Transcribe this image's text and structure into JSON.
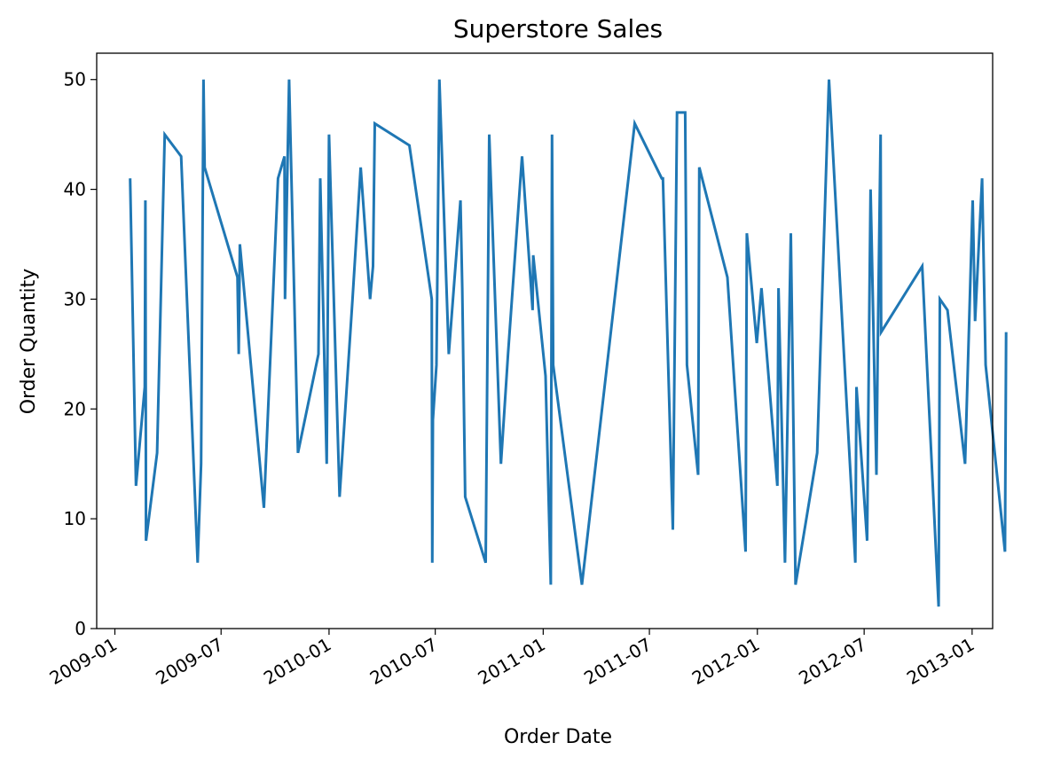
{
  "chart_data": {
    "type": "line",
    "title": "Superstore Sales",
    "xlabel": "Order Date",
    "ylabel": "Order Quantity",
    "x_axis": "date",
    "xlim": [
      "2008-12-01",
      "2013-02-05"
    ],
    "ylim": [
      0,
      52.4
    ],
    "x_ticks": [
      "2009-01",
      "2009-07",
      "2010-01",
      "2010-07",
      "2011-01",
      "2011-07",
      "2012-01",
      "2012-07",
      "2013-01"
    ],
    "y_ticks": [
      0,
      10,
      20,
      30,
      40,
      50
    ],
    "grid": false,
    "legend": "none",
    "series": [
      {
        "color": "#1f77b4",
        "points": [
          [
            "2009-01-27",
            41
          ],
          [
            "2009-02-06",
            13
          ],
          [
            "2009-02-21",
            22
          ],
          [
            "2009-02-22",
            39
          ],
          [
            "2009-02-23",
            8
          ],
          [
            "2009-03-14",
            16
          ],
          [
            "2009-03-27",
            45
          ],
          [
            "2009-04-24",
            43
          ],
          [
            "2009-05-22",
            6
          ],
          [
            "2009-05-28",
            15
          ],
          [
            "2009-06-01",
            50
          ],
          [
            "2009-06-03",
            42
          ],
          [
            "2009-07-29",
            32
          ],
          [
            "2009-07-31",
            25
          ],
          [
            "2009-08-02",
            35
          ],
          [
            "2009-09-12",
            11
          ],
          [
            "2009-10-06",
            41
          ],
          [
            "2009-10-17",
            43
          ],
          [
            "2009-10-18",
            30
          ],
          [
            "2009-10-25",
            50
          ],
          [
            "2009-11-09",
            16
          ],
          [
            "2009-12-14",
            25
          ],
          [
            "2009-12-17",
            41
          ],
          [
            "2009-12-28",
            15
          ],
          [
            "2010-01-01",
            45
          ],
          [
            "2010-01-19",
            12
          ],
          [
            "2010-02-10",
            30
          ],
          [
            "2010-02-24",
            42
          ],
          [
            "2010-03-12",
            30
          ],
          [
            "2010-03-17",
            33
          ],
          [
            "2010-03-20",
            46
          ],
          [
            "2010-05-18",
            44
          ],
          [
            "2010-06-25",
            30
          ],
          [
            "2010-06-26",
            6
          ],
          [
            "2010-06-27",
            19
          ],
          [
            "2010-07-03",
            24
          ],
          [
            "2010-07-08",
            50
          ],
          [
            "2010-07-24",
            25
          ],
          [
            "2010-08-13",
            39
          ],
          [
            "2010-08-16",
            31
          ],
          [
            "2010-08-21",
            12
          ],
          [
            "2010-09-25",
            6
          ],
          [
            "2010-10-01",
            45
          ],
          [
            "2010-10-21",
            15
          ],
          [
            "2010-11-02",
            25
          ],
          [
            "2010-11-26",
            43
          ],
          [
            "2010-12-14",
            29
          ],
          [
            "2010-12-15",
            34
          ],
          [
            "2011-01-05",
            23
          ],
          [
            "2011-01-14",
            4
          ],
          [
            "2011-01-16",
            45
          ],
          [
            "2011-01-18",
            24
          ],
          [
            "2011-03-08",
            4
          ],
          [
            "2011-06-06",
            46
          ],
          [
            "2011-07-22",
            41
          ],
          [
            "2011-07-24",
            41
          ],
          [
            "2011-08-10",
            9
          ],
          [
            "2011-08-17",
            47
          ],
          [
            "2011-08-31",
            47
          ],
          [
            "2011-09-03",
            24
          ],
          [
            "2011-09-22",
            14
          ],
          [
            "2011-09-24",
            42
          ],
          [
            "2011-11-11",
            32
          ],
          [
            "2011-12-12",
            7
          ],
          [
            "2011-12-14",
            36
          ],
          [
            "2011-12-31",
            26
          ],
          [
            "2012-01-08",
            31
          ],
          [
            "2012-01-11",
            29
          ],
          [
            "2012-02-04",
            13
          ],
          [
            "2012-02-06",
            31
          ],
          [
            "2012-02-17",
            6
          ],
          [
            "2012-02-27",
            36
          ],
          [
            "2012-03-06",
            4
          ],
          [
            "2012-04-12",
            16
          ],
          [
            "2012-05-02",
            50
          ],
          [
            "2012-06-16",
            6
          ],
          [
            "2012-06-18",
            22
          ],
          [
            "2012-07-06",
            8
          ],
          [
            "2012-07-10",
            30
          ],
          [
            "2012-07-12",
            40
          ],
          [
            "2012-07-22",
            14
          ],
          [
            "2012-07-24",
            25
          ],
          [
            "2012-07-29",
            45
          ],
          [
            "2012-07-30",
            27
          ],
          [
            "2012-10-08",
            33
          ],
          [
            "2012-11-05",
            2
          ],
          [
            "2012-11-07",
            30
          ],
          [
            "2012-11-20",
            29
          ],
          [
            "2012-12-20",
            15
          ],
          [
            "2013-01-02",
            39
          ],
          [
            "2013-01-06",
            28
          ],
          [
            "2013-01-18",
            41
          ],
          [
            "2013-01-24",
            24
          ],
          [
            "2013-02-26",
            7
          ],
          [
            "2013-02-28",
            27
          ]
        ]
      }
    ]
  }
}
